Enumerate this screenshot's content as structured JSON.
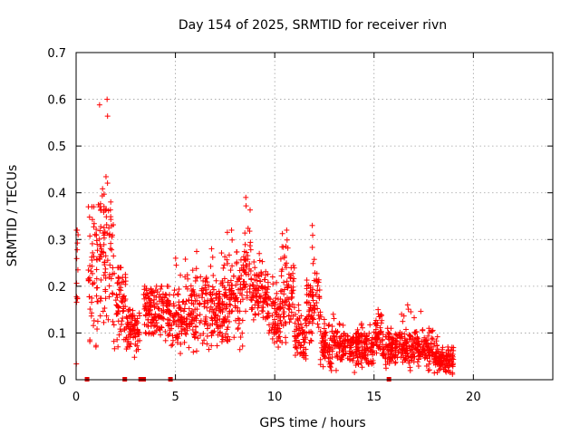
{
  "chart_data": {
    "type": "scatter",
    "title": "Day 154 of 2025, SRMTID for receiver rivn",
    "xlabel": "GPS time / hours",
    "ylabel": "SRMTID / TECUs",
    "xlim": [
      0,
      24
    ],
    "ylim": [
      0,
      0.7
    ],
    "xticks": [
      0,
      5,
      10,
      15,
      20
    ],
    "yticks": [
      0,
      0.1,
      0.2,
      0.3,
      0.4,
      0.5,
      0.6,
      0.7
    ],
    "grid": true,
    "marker": "+",
    "color": "#ff0000",
    "segments": [
      {
        "x_start": 0.0,
        "x_end": 0.1,
        "base": 0.18,
        "spread": 0.14,
        "spike_max": 0.32
      },
      {
        "x_start": 0.6,
        "x_end": 1.1,
        "base": 0.22,
        "spread": 0.12,
        "spike_max": 0.37
      },
      {
        "x_start": 1.1,
        "x_end": 1.9,
        "base": 0.28,
        "spread": 0.12,
        "spike_max": 0.6
      },
      {
        "x_start": 1.9,
        "x_end": 2.5,
        "base": 0.16,
        "spread": 0.07,
        "spike_max": 0.24
      },
      {
        "x_start": 2.5,
        "x_end": 3.2,
        "base": 0.11,
        "spread": 0.04,
        "spike_max": 0.15
      },
      {
        "x_start": 3.4,
        "x_end": 4.6,
        "base": 0.15,
        "spread": 0.04,
        "spike_max": 0.2
      },
      {
        "x_start": 4.6,
        "x_end": 5.6,
        "base": 0.13,
        "spread": 0.05,
        "spike_max": 0.26
      },
      {
        "x_start": 5.6,
        "x_end": 7.5,
        "base": 0.15,
        "spread": 0.06,
        "spike_max": 0.28
      },
      {
        "x_start": 7.5,
        "x_end": 8.4,
        "base": 0.17,
        "spread": 0.07,
        "spike_max": 0.32
      },
      {
        "x_start": 8.4,
        "x_end": 8.8,
        "base": 0.24,
        "spread": 0.06,
        "spike_max": 0.39
      },
      {
        "x_start": 8.8,
        "x_end": 9.7,
        "base": 0.18,
        "spread": 0.05,
        "spike_max": 0.27
      },
      {
        "x_start": 9.7,
        "x_end": 10.3,
        "base": 0.13,
        "spread": 0.05,
        "spike_max": 0.22
      },
      {
        "x_start": 10.3,
        "x_end": 11.0,
        "base": 0.18,
        "spread": 0.07,
        "spike_max": 0.32
      },
      {
        "x_start": 11.0,
        "x_end": 11.6,
        "base": 0.09,
        "spread": 0.04,
        "spike_max": 0.16
      },
      {
        "x_start": 11.6,
        "x_end": 12.3,
        "base": 0.16,
        "spread": 0.07,
        "spike_max": 0.33
      },
      {
        "x_start": 12.3,
        "x_end": 13.5,
        "base": 0.07,
        "spread": 0.03,
        "spike_max": 0.14
      },
      {
        "x_start": 13.5,
        "x_end": 15.0,
        "base": 0.07,
        "spread": 0.03,
        "spike_max": 0.12
      },
      {
        "x_start": 15.0,
        "x_end": 15.4,
        "base": 0.09,
        "spread": 0.03,
        "spike_max": 0.15
      },
      {
        "x_start": 15.4,
        "x_end": 16.2,
        "base": 0.07,
        "spread": 0.03,
        "spike_max": 0.11
      },
      {
        "x_start": 16.2,
        "x_end": 17.4,
        "base": 0.07,
        "spread": 0.03,
        "spike_max": 0.16
      },
      {
        "x_start": 17.4,
        "x_end": 18.2,
        "base": 0.06,
        "spread": 0.03,
        "spike_max": 0.11
      },
      {
        "x_start": 18.2,
        "x_end": 19.0,
        "base": 0.04,
        "spread": 0.02,
        "spike_max": 0.07
      }
    ],
    "zero_flags_hours": [
      0.55,
      2.45,
      3.25,
      3.4,
      4.75,
      15.75
    ]
  }
}
